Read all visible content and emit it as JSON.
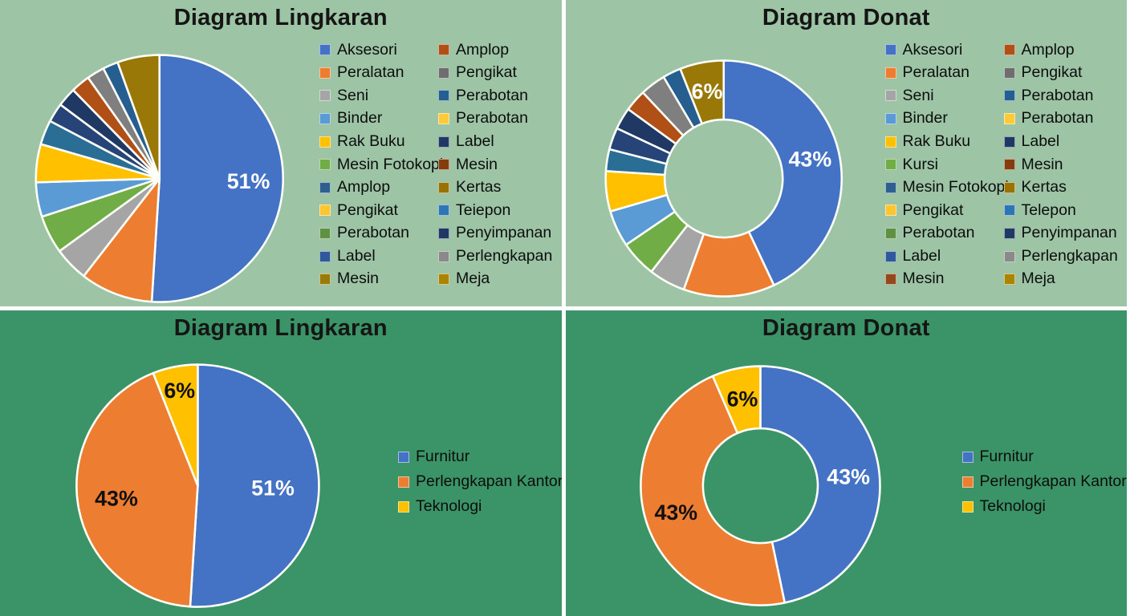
{
  "page": {
    "background_top": "#9cc4a5",
    "background_bottom": "#3b9468",
    "divider_color": "#ffffff"
  },
  "chart_data": [
    {
      "type": "pie",
      "title": "Diagram Lingkaran",
      "legend_position": "right",
      "segments": [
        {
          "value": 51,
          "color": "#4472C4",
          "label": "51%",
          "label_color": "#FFFFFF"
        },
        {
          "value": 9.5,
          "color": "#ED7D31"
        },
        {
          "value": 4.5,
          "color": "#A5A5A5"
        },
        {
          "value": 5,
          "color": "#70AD47"
        },
        {
          "value": 4.5,
          "color": "#5B9BD5"
        },
        {
          "value": 5,
          "color": "#FFC000"
        },
        {
          "value": 3.2,
          "color": "#2A6E96"
        },
        {
          "value": 2.5,
          "color": "#264478"
        },
        {
          "value": 2.5,
          "color": "#1F3864"
        },
        {
          "value": 2.5,
          "color": "#B04F16"
        },
        {
          "value": 2.3,
          "color": "#7F7F7F"
        },
        {
          "value": 2,
          "color": "#265F8F"
        },
        {
          "value": 5.5,
          "color": "#997808"
        }
      ],
      "legend_columns": [
        [
          {
            "label": "Aksesori",
            "color": "#4472C4"
          },
          {
            "label": "Peralatan",
            "color": "#ED7D31"
          },
          {
            "label": "Seni",
            "color": "#A5A5A5"
          },
          {
            "label": "Binder",
            "color": "#5B9BD5"
          },
          {
            "label": "Rak Buku",
            "color": "#FFC000"
          },
          {
            "label": "Mesin Fotokopi",
            "color": "#70AD47"
          },
          {
            "label": "Amplop",
            "color": "#2E5F8F"
          },
          {
            "label": "Pengikat",
            "color": "#FFC52F"
          },
          {
            "label": "Perabotan",
            "color": "#5E9142"
          },
          {
            "label": "Label",
            "color": "#30599B"
          },
          {
            "label": "Mesin",
            "color": "#9A7B0A"
          }
        ],
        [
          {
            "label": "Amplop",
            "color": "#B04F16"
          },
          {
            "label": "Pengikat",
            "color": "#6E6E6E"
          },
          {
            "label": "Perabotan",
            "color": "#255E91"
          },
          {
            "label": "Perabotan",
            "color": "#FFC937"
          },
          {
            "label": "Label",
            "color": "#1F3864"
          },
          {
            "label": "Mesin",
            "color": "#843C0C"
          },
          {
            "label": "Kertas",
            "color": "#997300"
          },
          {
            "label": "Teiepon",
            "color": "#2E75B6"
          },
          {
            "label": "Penyimpanan",
            "color": "#203864"
          },
          {
            "label": "Perlengkapan",
            "color": "#8A8A8A"
          },
          {
            "label": "Meja",
            "color": "#A98500"
          }
        ]
      ]
    },
    {
      "type": "donut",
      "title": "Diagram Donat",
      "legend_position": "right",
      "segments": [
        {
          "value": 43,
          "color": "#4472C4",
          "label": "43%",
          "label_color": "#FFFFFF"
        },
        {
          "value": 12.5,
          "color": "#ED7D31"
        },
        {
          "value": 5,
          "color": "#A5A5A5"
        },
        {
          "value": 5,
          "color": "#70AD47"
        },
        {
          "value": 5,
          "color": "#5B9BD5"
        },
        {
          "value": 5.5,
          "color": "#FFC000"
        },
        {
          "value": 3,
          "color": "#2A6E96"
        },
        {
          "value": 3,
          "color": "#264478"
        },
        {
          "value": 3,
          "color": "#1F3864"
        },
        {
          "value": 3,
          "color": "#B04F16"
        },
        {
          "value": 3.5,
          "color": "#7F7F7F"
        },
        {
          "value": 2.5,
          "color": "#265F8F"
        },
        {
          "value": 6,
          "color": "#997808",
          "label": "6%",
          "label_color": "#FFFFFF"
        }
      ],
      "legend_columns": [
        [
          {
            "label": "Aksesori",
            "color": "#4472C4"
          },
          {
            "label": "Peralatan",
            "color": "#ED7D31"
          },
          {
            "label": "Seni",
            "color": "#A5A5A5"
          },
          {
            "label": "Binder",
            "color": "#5B9BD5"
          },
          {
            "label": "Rak Buku",
            "color": "#FFC000"
          },
          {
            "label": "Kursi",
            "color": "#70AD47"
          },
          {
            "label": "Mesin Fotokopi",
            "color": "#2E5F8F"
          },
          {
            "label": "Pengikat",
            "color": "#FFC52F"
          },
          {
            "label": "Perabotan",
            "color": "#5E9142"
          },
          {
            "label": "Label",
            "color": "#30599B"
          },
          {
            "label": "Mesin",
            "color": "#93491B"
          }
        ],
        [
          {
            "label": "Amplop",
            "color": "#B04F16"
          },
          {
            "label": "Pengikat",
            "color": "#6E6E6E"
          },
          {
            "label": "Perabotan",
            "color": "#255E91"
          },
          {
            "label": "Perabotan",
            "color": "#FFC937"
          },
          {
            "label": "Label",
            "color": "#1F3864"
          },
          {
            "label": "Mesin",
            "color": "#843C0C"
          },
          {
            "label": "Kertas",
            "color": "#997300"
          },
          {
            "label": "Telepon",
            "color": "#2E75B6"
          },
          {
            "label": "Penyimpanan",
            "color": "#203864"
          },
          {
            "label": "Perlengkapan",
            "color": "#8A8A8A"
          },
          {
            "label": "Meja",
            "color": "#A98500"
          }
        ]
      ]
    },
    {
      "type": "pie",
      "title": "Diagram Lingkaran",
      "legend_position": "right",
      "segments": [
        {
          "name": "Furnitur",
          "value": 51,
          "color": "#4472C4",
          "label": "51%",
          "label_color": "#FFFFFF"
        },
        {
          "name": "Perlengkapan Kantor",
          "value": 43,
          "color": "#ED7D31",
          "label": "43%",
          "label_color": "#111111"
        },
        {
          "name": "Teknologi",
          "value": 6,
          "color": "#FFC000",
          "label": "6%",
          "label_color": "#111111"
        }
      ],
      "legend_columns": [
        [
          {
            "label": "Furnitur",
            "color": "#4472C4"
          },
          {
            "label": "Perlengkapan Kantor",
            "color": "#ED7D31"
          },
          {
            "label": "Teknologi",
            "color": "#FFC000"
          }
        ]
      ]
    },
    {
      "type": "donut",
      "title": "Diagram Donat",
      "legend_position": "right",
      "segments": [
        {
          "name": "Furnitur",
          "value": 43,
          "color": "#4472C4",
          "label": "43%",
          "label_color": "#FFFFFF"
        },
        {
          "name": "Perlengkapan Kantor",
          "value": 43,
          "color": "#ED7D31",
          "label": "43%",
          "label_color": "#111111"
        },
        {
          "name": "Teknologi",
          "value": 6,
          "color": "#FFC000",
          "label": "6%",
          "label_color": "#111111"
        }
      ],
      "legend_columns": [
        [
          {
            "label": "Furnitur",
            "color": "#4472C4"
          },
          {
            "label": "Perlengkapan Kantor",
            "color": "#ED7D31"
          },
          {
            "label": "Teknologi",
            "color": "#FFC000"
          }
        ]
      ]
    }
  ]
}
